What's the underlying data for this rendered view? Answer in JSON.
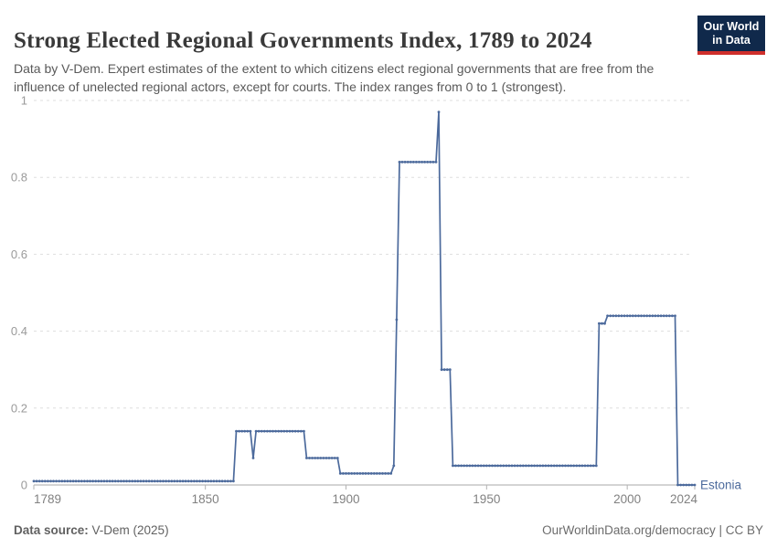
{
  "header": {
    "title": "Strong Elected Regional Governments Index, 1789 to 2024",
    "subtitle": "Data by V-Dem. Expert estimates of the extent to which citizens elect regional governments that are free from the influence of unelected regional actors, except for courts. The index ranges from 0 to 1 (strongest)."
  },
  "logo": {
    "line1": "Our World",
    "line2": "in Data",
    "bg_color": "#10294b",
    "accent_color": "#cf2f2b"
  },
  "chart_data": {
    "type": "line",
    "title": "Strong Elected Regional Governments Index, 1789 to 2024",
    "xlabel": "",
    "ylabel": "",
    "xlim": [
      1789,
      2024
    ],
    "ylim": [
      0,
      1
    ],
    "x_ticks": [
      1789,
      1850,
      1900,
      1950,
      2000,
      2024
    ],
    "y_ticks": [
      0,
      0.2,
      0.4,
      0.6,
      0.8,
      1
    ],
    "grid": "horizontal-dashed",
    "legend_position": "end-of-line",
    "series": [
      {
        "name": "Estonia",
        "color": "#4c6a9c",
        "marker": "dot-per-year",
        "segments": [
          {
            "from": 1789,
            "to": 1860,
            "value": 0.01
          },
          {
            "from": 1861,
            "to": 1866,
            "value": 0.14
          },
          {
            "from": 1867,
            "to": 1867,
            "value": 0.07
          },
          {
            "from": 1868,
            "to": 1885,
            "value": 0.14
          },
          {
            "from": 1886,
            "to": 1897,
            "value": 0.07
          },
          {
            "from": 1898,
            "to": 1916,
            "value": 0.03
          },
          {
            "from": 1917,
            "to": 1917,
            "value": 0.05
          },
          {
            "from": 1918,
            "to": 1918,
            "value": 0.43
          },
          {
            "from": 1919,
            "to": 1932,
            "value": 0.84
          },
          {
            "from": 1933,
            "to": 1933,
            "value": 0.97
          },
          {
            "from": 1934,
            "to": 1937,
            "value": 0.3
          },
          {
            "from": 1938,
            "to": 1989,
            "value": 0.05
          },
          {
            "from": 1990,
            "to": 1992,
            "value": 0.42
          },
          {
            "from": 1993,
            "to": 2017,
            "value": 0.44
          },
          {
            "from": 2018,
            "to": 2024,
            "value": 0.0
          }
        ]
      }
    ],
    "style": {
      "gridline_color": "#dedede",
      "axis_line_color": "#a8a8a8",
      "tick_color": "#b3b3b3",
      "x_label_color": "#818181",
      "y_label_color": "#9a9a9a"
    }
  },
  "footer": {
    "source_label": "Data source:",
    "source_value": " V-Dem (2025)",
    "link": "OurWorldinData.org/democracy | CC BY"
  }
}
